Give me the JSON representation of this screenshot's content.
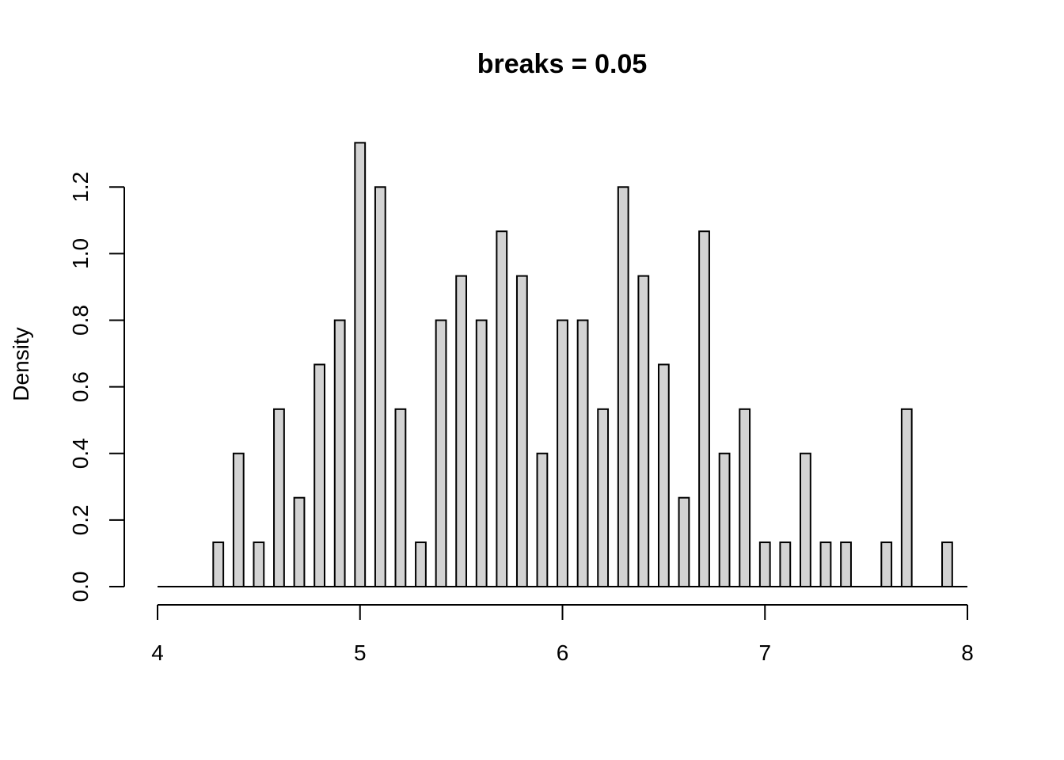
{
  "chart_data": {
    "type": "bar",
    "title": "breaks = 0.05",
    "xlabel": "",
    "ylabel": "Density",
    "xlim": [
      4,
      8
    ],
    "ylim": [
      0,
      1.333
    ],
    "x_ticks": [
      "4",
      "5",
      "6",
      "7",
      "8"
    ],
    "y_ticks": [
      "0.0",
      "0.2",
      "0.4",
      "0.6",
      "0.8",
      "1.0",
      "1.2"
    ],
    "bar_width": 0.05,
    "bar_fill": "#d3d3d3",
    "bars": [
      {
        "x": 4.3,
        "value": 0.133
      },
      {
        "x": 4.4,
        "value": 0.4
      },
      {
        "x": 4.5,
        "value": 0.133
      },
      {
        "x": 4.6,
        "value": 0.533
      },
      {
        "x": 4.7,
        "value": 0.267
      },
      {
        "x": 4.8,
        "value": 0.667
      },
      {
        "x": 4.9,
        "value": 0.8
      },
      {
        "x": 5.0,
        "value": 1.333
      },
      {
        "x": 5.1,
        "value": 1.2
      },
      {
        "x": 5.2,
        "value": 0.533
      },
      {
        "x": 5.3,
        "value": 0.133
      },
      {
        "x": 5.4,
        "value": 0.8
      },
      {
        "x": 5.5,
        "value": 0.933
      },
      {
        "x": 5.6,
        "value": 0.8
      },
      {
        "x": 5.7,
        "value": 1.067
      },
      {
        "x": 5.8,
        "value": 0.933
      },
      {
        "x": 5.9,
        "value": 0.4
      },
      {
        "x": 6.0,
        "value": 0.8
      },
      {
        "x": 6.1,
        "value": 0.8
      },
      {
        "x": 6.2,
        "value": 0.533
      },
      {
        "x": 6.3,
        "value": 1.2
      },
      {
        "x": 6.4,
        "value": 0.933
      },
      {
        "x": 6.5,
        "value": 0.667
      },
      {
        "x": 6.6,
        "value": 0.267
      },
      {
        "x": 6.7,
        "value": 1.067
      },
      {
        "x": 6.8,
        "value": 0.4
      },
      {
        "x": 6.9,
        "value": 0.533
      },
      {
        "x": 7.0,
        "value": 0.133
      },
      {
        "x": 7.1,
        "value": 0.133
      },
      {
        "x": 7.2,
        "value": 0.4
      },
      {
        "x": 7.3,
        "value": 0.133
      },
      {
        "x": 7.4,
        "value": 0.133
      },
      {
        "x": 7.6,
        "value": 0.133
      },
      {
        "x": 7.7,
        "value": 0.533
      },
      {
        "x": 7.9,
        "value": 0.133
      }
    ]
  }
}
